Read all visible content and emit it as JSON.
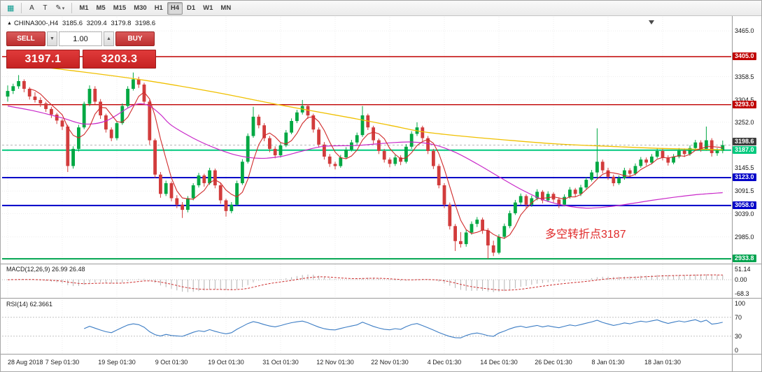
{
  "toolbar": {
    "icons": {
      "chart": "▦",
      "text_a": "A",
      "text_t": "T",
      "pencil": "✎",
      "dropdown": "▾"
    },
    "timeframes": [
      "M1",
      "M5",
      "M15",
      "M30",
      "H1",
      "H4",
      "D1",
      "W1",
      "MN"
    ],
    "active_timeframe": "H4"
  },
  "chart_header": {
    "marker": "▲",
    "symbol_period": "CHINA300-,H4",
    "open": "3185.6",
    "high": "3209.4",
    "low": "3179.8",
    "close": "3198.6"
  },
  "trade_panel": {
    "sell_label": "SELL",
    "buy_label": "BUY",
    "volume": "1.00",
    "volume_down_icon": "▼",
    "volume_up_icon": "▲",
    "sell_price": "3197.1",
    "buy_price": "3203.3"
  },
  "annotation": {
    "text": "多空转折点3187"
  },
  "indicators": {
    "macd": {
      "label": "MACD(12,26,9) 26.99 26.48",
      "axis": [
        "51.14",
        "0.00",
        "-68.3"
      ]
    },
    "rsi": {
      "label": "RSI(14) 62.3661",
      "axis": [
        "100",
        "70",
        "30",
        "0"
      ]
    }
  },
  "chart_data": {
    "type": "candlestick",
    "symbol": "CHINA300-",
    "timeframe": "H4",
    "last_bar": {
      "open": 3185.6,
      "high": 3209.4,
      "low": 3179.8,
      "close": 3198.6
    },
    "x_labels": [
      {
        "text": "28 Aug 2018",
        "bar": 0
      },
      {
        "text": "7 Sep 01:30",
        "bar": 10
      },
      {
        "text": "19 Sep 01:30",
        "bar": 20
      },
      {
        "text": "9 Oct 01:30",
        "bar": 30
      },
      {
        "text": "19 Oct 01:30",
        "bar": 40
      },
      {
        "text": "31 Oct 01:30",
        "bar": 50
      },
      {
        "text": "12 Nov 01:30",
        "bar": 60
      },
      {
        "text": "22 Nov 01:30",
        "bar": 70
      },
      {
        "text": "4 Dec 01:30",
        "bar": 80
      },
      {
        "text": "14 Dec 01:30",
        "bar": 90
      },
      {
        "text": "26 Dec 01:30",
        "bar": 100
      },
      {
        "text": "8 Jan 01:30",
        "bar": 110
      },
      {
        "text": "18 Jan 01:30",
        "bar": 120
      }
    ],
    "y_axis_labels": [
      {
        "text": "3465.0",
        "price": 3465.0
      },
      {
        "text": "3358.5",
        "price": 3358.5
      },
      {
        "text": "3304.5",
        "price": 3304.5
      },
      {
        "text": "3252.0",
        "price": 3252.0
      },
      {
        "text": "3145.5",
        "price": 3145.5
      },
      {
        "text": "3091.5",
        "price": 3091.5
      },
      {
        "text": "3039.0",
        "price": 3039.0
      },
      {
        "text": "2985.0",
        "price": 2985.0
      }
    ],
    "levels": [
      {
        "label": "3405.0",
        "price": 3405.0,
        "color": "#c00000",
        "width": 1.4
      },
      {
        "label": "3293.0",
        "price": 3293.0,
        "color": "#c00000",
        "width": 1.4
      },
      {
        "label": "3187.0",
        "price": 3187.0,
        "color": "#00c97d",
        "width": 2
      },
      {
        "label": "3123.0",
        "price": 3123.0,
        "color": "#0000c8",
        "width": 2
      },
      {
        "label": "3058.0",
        "price": 3058.0,
        "color": "#0000c8",
        "width": 2
      },
      {
        "label": "2933.8",
        "price": 2933.8,
        "color": "#00a44f",
        "width": 2
      }
    ],
    "current_price": {
      "label": "3198.6",
      "price": 3198.6
    },
    "colors": {
      "up": "#00a843",
      "down": "#d23c3c",
      "ma_fast": "#d02a2a",
      "ma_mid": "#c929c9",
      "ma_slow": "#f0c000",
      "macd_signal": "#cc2a2a",
      "macd_hist": "#b4b4b4",
      "rsi": "#3b7cc4"
    },
    "ma_slow": [
      [
        0,
        3390
      ],
      [
        12,
        3372
      ],
      [
        25,
        3350
      ],
      [
        38,
        3322
      ],
      [
        50,
        3292
      ],
      [
        63,
        3262
      ],
      [
        70,
        3245
      ],
      [
        76,
        3230
      ],
      [
        83,
        3220
      ],
      [
        90,
        3212
      ],
      [
        100,
        3202
      ],
      [
        110,
        3196
      ],
      [
        120,
        3191
      ],
      [
        131,
        3188
      ]
    ],
    "ma_mid": [
      [
        0,
        3290
      ],
      [
        5,
        3278
      ],
      [
        10,
        3262
      ],
      [
        14,
        3248
      ],
      [
        18,
        3255
      ],
      [
        22,
        3285
      ],
      [
        24,
        3295
      ],
      [
        26,
        3290
      ],
      [
        28,
        3270
      ],
      [
        30,
        3245
      ],
      [
        34,
        3215
      ],
      [
        38,
        3192
      ],
      [
        42,
        3175
      ],
      [
        46,
        3168
      ],
      [
        50,
        3172
      ],
      [
        54,
        3185
      ],
      [
        58,
        3196
      ],
      [
        64,
        3198
      ],
      [
        70,
        3204
      ],
      [
        74,
        3206
      ],
      [
        78,
        3200
      ],
      [
        82,
        3182
      ],
      [
        86,
        3155
      ],
      [
        90,
        3125
      ],
      [
        94,
        3096
      ],
      [
        98,
        3072
      ],
      [
        102,
        3058
      ],
      [
        106,
        3052
      ],
      [
        110,
        3055
      ],
      [
        114,
        3062
      ],
      [
        118,
        3070
      ],
      [
        122,
        3077
      ],
      [
        126,
        3083
      ],
      [
        131,
        3088
      ]
    ],
    "candles": [
      [
        3312,
        3338,
        3300,
        3325
      ],
      [
        3325,
        3342,
        3318,
        3336
      ],
      [
        3336,
        3362,
        3330,
        3348
      ],
      [
        3348,
        3352,
        3322,
        3330
      ],
      [
        3330,
        3334,
        3305,
        3312
      ],
      [
        3312,
        3322,
        3298,
        3304
      ],
      [
        3304,
        3310,
        3288,
        3296
      ],
      [
        3296,
        3300,
        3276,
        3283
      ],
      [
        3283,
        3288,
        3262,
        3270
      ],
      [
        3270,
        3274,
        3248,
        3256
      ],
      [
        3256,
        3260,
        3234,
        3242
      ],
      [
        3242,
        3246,
        3136,
        3150
      ],
      [
        3150,
        3196,
        3144,
        3190
      ],
      [
        3190,
        3246,
        3184,
        3240
      ],
      [
        3240,
        3300,
        3236,
        3295
      ],
      [
        3295,
        3338,
        3290,
        3330
      ],
      [
        3330,
        3336,
        3294,
        3300
      ],
      [
        3300,
        3306,
        3260,
        3268
      ],
      [
        3268,
        3272,
        3228,
        3235
      ],
      [
        3235,
        3240,
        3208,
        3215
      ],
      [
        3215,
        3255,
        3210,
        3250
      ],
      [
        3250,
        3296,
        3246,
        3290
      ],
      [
        3290,
        3336,
        3286,
        3330
      ],
      [
        3330,
        3368,
        3326,
        3352
      ],
      [
        3352,
        3358,
        3332,
        3340
      ],
      [
        3340,
        3344,
        3294,
        3300
      ],
      [
        3300,
        3304,
        3200,
        3210
      ],
      [
        3210,
        3214,
        3122,
        3130
      ],
      [
        3130,
        3136,
        3076,
        3085
      ],
      [
        3085,
        3116,
        3080,
        3110
      ],
      [
        3110,
        3114,
        3068,
        3075
      ],
      [
        3075,
        3082,
        3052,
        3060
      ],
      [
        3060,
        3066,
        3029,
        3048
      ],
      [
        3048,
        3080,
        3042,
        3075
      ],
      [
        3075,
        3110,
        3070,
        3105
      ],
      [
        3105,
        3134,
        3100,
        3128
      ],
      [
        3128,
        3132,
        3102,
        3110
      ],
      [
        3110,
        3146,
        3106,
        3140
      ],
      [
        3140,
        3144,
        3098,
        3105
      ],
      [
        3105,
        3110,
        3062,
        3070
      ],
      [
        3070,
        3074,
        3032,
        3045
      ],
      [
        3045,
        3066,
        3040,
        3060
      ],
      [
        3060,
        3116,
        3056,
        3110
      ],
      [
        3110,
        3166,
        3106,
        3160
      ],
      [
        3160,
        3226,
        3156,
        3220
      ],
      [
        3220,
        3288,
        3216,
        3265
      ],
      [
        3265,
        3270,
        3238,
        3245
      ],
      [
        3245,
        3250,
        3208,
        3215
      ],
      [
        3215,
        3220,
        3182,
        3190
      ],
      [
        3190,
        3196,
        3168,
        3175
      ],
      [
        3175,
        3204,
        3170,
        3198
      ],
      [
        3198,
        3234,
        3194,
        3228
      ],
      [
        3228,
        3261,
        3224,
        3255
      ],
      [
        3255,
        3281,
        3250,
        3275
      ],
      [
        3275,
        3304,
        3270,
        3290
      ],
      [
        3290,
        3294,
        3260,
        3268
      ],
      [
        3268,
        3272,
        3228,
        3235
      ],
      [
        3235,
        3240,
        3193,
        3200
      ],
      [
        3200,
        3206,
        3165,
        3172
      ],
      [
        3172,
        3178,
        3148,
        3155
      ],
      [
        3155,
        3160,
        3142,
        3150
      ],
      [
        3150,
        3176,
        3146,
        3170
      ],
      [
        3170,
        3194,
        3166,
        3188
      ],
      [
        3188,
        3211,
        3184,
        3205
      ],
      [
        3205,
        3228,
        3200,
        3222
      ],
      [
        3222,
        3290,
        3218,
        3268
      ],
      [
        3268,
        3272,
        3234,
        3240
      ],
      [
        3240,
        3244,
        3202,
        3210
      ],
      [
        3210,
        3214,
        3178,
        3185
      ],
      [
        3185,
        3190,
        3158,
        3165
      ],
      [
        3165,
        3170,
        3147,
        3155
      ],
      [
        3155,
        3176,
        3150,
        3170
      ],
      [
        3170,
        3175,
        3152,
        3160
      ],
      [
        3160,
        3201,
        3156,
        3195
      ],
      [
        3195,
        3231,
        3190,
        3225
      ],
      [
        3225,
        3252,
        3220,
        3240
      ],
      [
        3240,
        3244,
        3208,
        3215
      ],
      [
        3215,
        3220,
        3178,
        3185
      ],
      [
        3185,
        3190,
        3143,
        3150
      ],
      [
        3150,
        3155,
        3098,
        3105
      ],
      [
        3105,
        3110,
        3052,
        3060
      ],
      [
        3060,
        3065,
        3002,
        3010
      ],
      [
        3010,
        3015,
        2952,
        2975
      ],
      [
        2975,
        2996,
        2960,
        2968
      ],
      [
        2968,
        3001,
        2962,
        2995
      ],
      [
        2995,
        3021,
        2990,
        3015
      ],
      [
        3015,
        3031,
        3008,
        3025
      ],
      [
        3025,
        3030,
        2992,
        3000
      ],
      [
        3000,
        3005,
        2933.8,
        2965
      ],
      [
        2965,
        2976,
        2940,
        2948
      ],
      [
        2948,
        2991,
        2944,
        2985
      ],
      [
        2985,
        3016,
        2980,
        3010
      ],
      [
        3010,
        3046,
        3005,
        3040
      ],
      [
        3040,
        3071,
        3036,
        3065
      ],
      [
        3065,
        3086,
        3060,
        3080
      ],
      [
        3080,
        3084,
        3052,
        3060
      ],
      [
        3060,
        3081,
        3055,
        3075
      ],
      [
        3075,
        3096,
        3070,
        3090
      ],
      [
        3090,
        3094,
        3063,
        3070
      ],
      [
        3070,
        3091,
        3066,
        3085
      ],
      [
        3085,
        3089,
        3065,
        3072
      ],
      [
        3072,
        3077,
        3052,
        3060
      ],
      [
        3060,
        3084,
        3056,
        3078
      ],
      [
        3078,
        3101,
        3074,
        3095
      ],
      [
        3095,
        3099,
        3078,
        3085
      ],
      [
        3085,
        3106,
        3080,
        3100
      ],
      [
        3100,
        3124,
        3096,
        3118
      ],
      [
        3118,
        3141,
        3114,
        3135
      ],
      [
        3135,
        3238,
        3122,
        3160
      ],
      [
        3160,
        3165,
        3133,
        3140
      ],
      [
        3140,
        3146,
        3118,
        3125
      ],
      [
        3125,
        3130,
        3103,
        3110
      ],
      [
        3110,
        3128,
        3106,
        3122
      ],
      [
        3122,
        3146,
        3118,
        3140
      ],
      [
        3140,
        3145,
        3125,
        3132
      ],
      [
        3132,
        3156,
        3128,
        3150
      ],
      [
        3150,
        3171,
        3146,
        3165
      ],
      [
        3165,
        3170,
        3151,
        3158
      ],
      [
        3158,
        3178,
        3154,
        3172
      ],
      [
        3172,
        3191,
        3168,
        3185
      ],
      [
        3185,
        3190,
        3163,
        3170
      ],
      [
        3170,
        3175,
        3151,
        3158
      ],
      [
        3158,
        3178,
        3154,
        3172
      ],
      [
        3172,
        3192,
        3168,
        3186
      ],
      [
        3186,
        3191,
        3171,
        3178
      ],
      [
        3178,
        3198,
        3174,
        3192
      ],
      [
        3192,
        3211,
        3188,
        3205
      ],
      [
        3205,
        3210,
        3183,
        3190
      ],
      [
        3190,
        3242,
        3186,
        3210
      ],
      [
        3210,
        3215,
        3172,
        3180
      ],
      [
        3180,
        3192,
        3174,
        3186
      ],
      [
        3185.6,
        3209.4,
        3179.8,
        3198.6
      ]
    ]
  }
}
